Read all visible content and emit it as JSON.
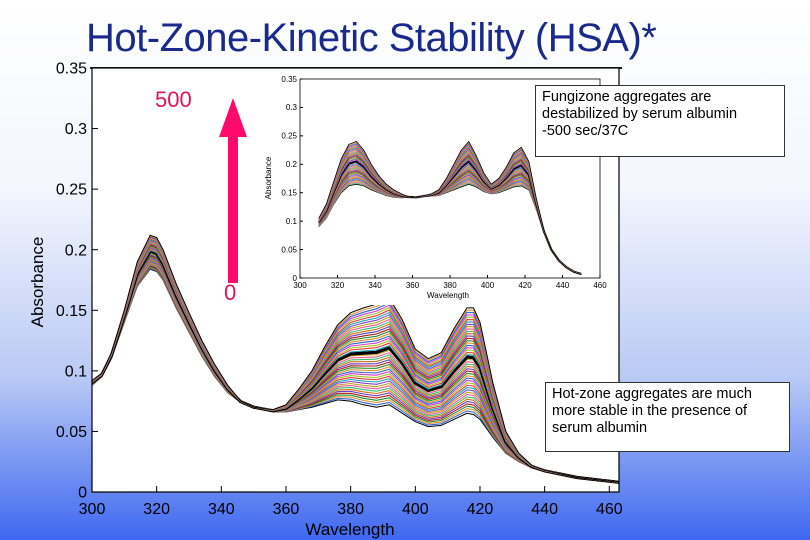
{
  "slide": {
    "title": "Hot-Zone-Kinetic Stability (HSA)*",
    "time_max_label": "500",
    "time_min_label": "0",
    "note_top": "Fungizone aggregates are\ndestabilized by serum albumin\n-500 sec/37C",
    "note_bottom": "Hot-zone aggregates are much\nmore stable in the presence of\nserum albumin",
    "arrow_color": "#ff0a6c",
    "accent_label_color": "#e0105a"
  },
  "chart_data": [
    {
      "type": "line",
      "title": "",
      "xlabel": "Wavelength",
      "ylabel": "Absorbance",
      "xlim": [
        300,
        463
      ],
      "ylim": [
        0,
        0.35
      ],
      "xticks": [
        300,
        320,
        340,
        360,
        380,
        400,
        420,
        440,
        460
      ],
      "yticks": [
        0,
        0.05,
        0.1,
        0.15,
        0.2,
        0.25,
        0.3,
        0.35
      ],
      "ytick_labels": [
        "0",
        "0.05",
        "0.1",
        "0.15",
        "0.2",
        "0.25",
        "0.3",
        "0.35"
      ],
      "grid": false,
      "series_note": "family of traces over time 0 to 500; first and last traces shown",
      "series": [
        {
          "name": "",
          "x": [
            300,
            303,
            306,
            310,
            314,
            318,
            320,
            322,
            326,
            330,
            334,
            338,
            342,
            346,
            350,
            356,
            360,
            364,
            368,
            372,
            376,
            380,
            384,
            388,
            392,
            396,
            400,
            404,
            408,
            412,
            416,
            418,
            420,
            424,
            428,
            432,
            436,
            440,
            450,
            463
          ],
          "y": [
            0.092,
            0.098,
            0.115,
            0.15,
            0.19,
            0.212,
            0.21,
            0.2,
            0.172,
            0.148,
            0.125,
            0.105,
            0.088,
            0.075,
            0.07,
            0.068,
            0.072,
            0.085,
            0.1,
            0.12,
            0.138,
            0.148,
            0.152,
            0.155,
            0.16,
            0.142,
            0.118,
            0.11,
            0.115,
            0.135,
            0.152,
            0.152,
            0.14,
            0.09,
            0.05,
            0.032,
            0.022,
            0.018,
            0.012,
            0.008
          ]
        },
        {
          "name": "",
          "x": [
            300,
            303,
            306,
            310,
            314,
            318,
            320,
            322,
            326,
            330,
            334,
            338,
            342,
            346,
            350,
            356,
            360,
            364,
            368,
            372,
            376,
            380,
            384,
            388,
            392,
            396,
            400,
            404,
            408,
            412,
            416,
            418,
            420,
            424,
            428,
            432,
            436,
            440,
            450,
            463
          ],
          "y": [
            0.088,
            0.095,
            0.11,
            0.14,
            0.17,
            0.184,
            0.182,
            0.175,
            0.152,
            0.132,
            0.112,
            0.095,
            0.082,
            0.074,
            0.07,
            0.066,
            0.066,
            0.068,
            0.07,
            0.073,
            0.076,
            0.075,
            0.072,
            0.07,
            0.072,
            0.065,
            0.058,
            0.054,
            0.055,
            0.06,
            0.065,
            0.064,
            0.06,
            0.045,
            0.032,
            0.025,
            0.02,
            0.017,
            0.012,
            0.008
          ]
        }
      ]
    },
    {
      "type": "line",
      "title": "",
      "xlabel": "Wavelength",
      "ylabel": "Absorbance",
      "xlim": [
        300,
        460
      ],
      "ylim": [
        0,
        0.35
      ],
      "xticks": [
        300,
        320,
        340,
        360,
        380,
        400,
        420,
        440,
        460
      ],
      "yticks": [
        0,
        0.05,
        0.1,
        0.15,
        0.2,
        0.25,
        0.3,
        0.35
      ],
      "ytick_labels": [
        "0",
        "0.05",
        "0.1",
        "0.15",
        "0.2",
        "0.25",
        "0.3",
        "0.35"
      ],
      "grid": false,
      "series_note": "family of traces over time 0 to 500; first and last traces shown",
      "series": [
        {
          "name": "",
          "x": [
            310,
            314,
            318,
            322,
            326,
            330,
            334,
            338,
            342,
            346,
            350,
            354,
            358,
            362,
            366,
            370,
            374,
            378,
            382,
            386,
            390,
            394,
            398,
            402,
            406,
            410,
            414,
            418,
            422,
            426,
            430,
            434,
            438,
            442,
            446,
            450
          ],
          "y": [
            0.105,
            0.13,
            0.17,
            0.21,
            0.235,
            0.24,
            0.225,
            0.2,
            0.18,
            0.165,
            0.155,
            0.148,
            0.143,
            0.142,
            0.145,
            0.148,
            0.155,
            0.175,
            0.2,
            0.225,
            0.24,
            0.215,
            0.185,
            0.165,
            0.175,
            0.195,
            0.22,
            0.23,
            0.205,
            0.14,
            0.085,
            0.05,
            0.03,
            0.018,
            0.01,
            0.006
          ]
        },
        {
          "name": "",
          "x": [
            310,
            314,
            318,
            322,
            326,
            330,
            334,
            338,
            342,
            346,
            350,
            354,
            358,
            362,
            366,
            370,
            374,
            378,
            382,
            386,
            390,
            394,
            398,
            402,
            406,
            410,
            414,
            418,
            422,
            426,
            430,
            434,
            438,
            442,
            446,
            450
          ],
          "y": [
            0.09,
            0.105,
            0.13,
            0.15,
            0.162,
            0.165,
            0.162,
            0.155,
            0.15,
            0.145,
            0.142,
            0.141,
            0.142,
            0.142,
            0.143,
            0.144,
            0.145,
            0.15,
            0.155,
            0.16,
            0.165,
            0.16,
            0.152,
            0.148,
            0.15,
            0.155,
            0.16,
            0.162,
            0.155,
            0.12,
            0.08,
            0.05,
            0.032,
            0.02,
            0.012,
            0.008
          ]
        }
      ]
    }
  ]
}
